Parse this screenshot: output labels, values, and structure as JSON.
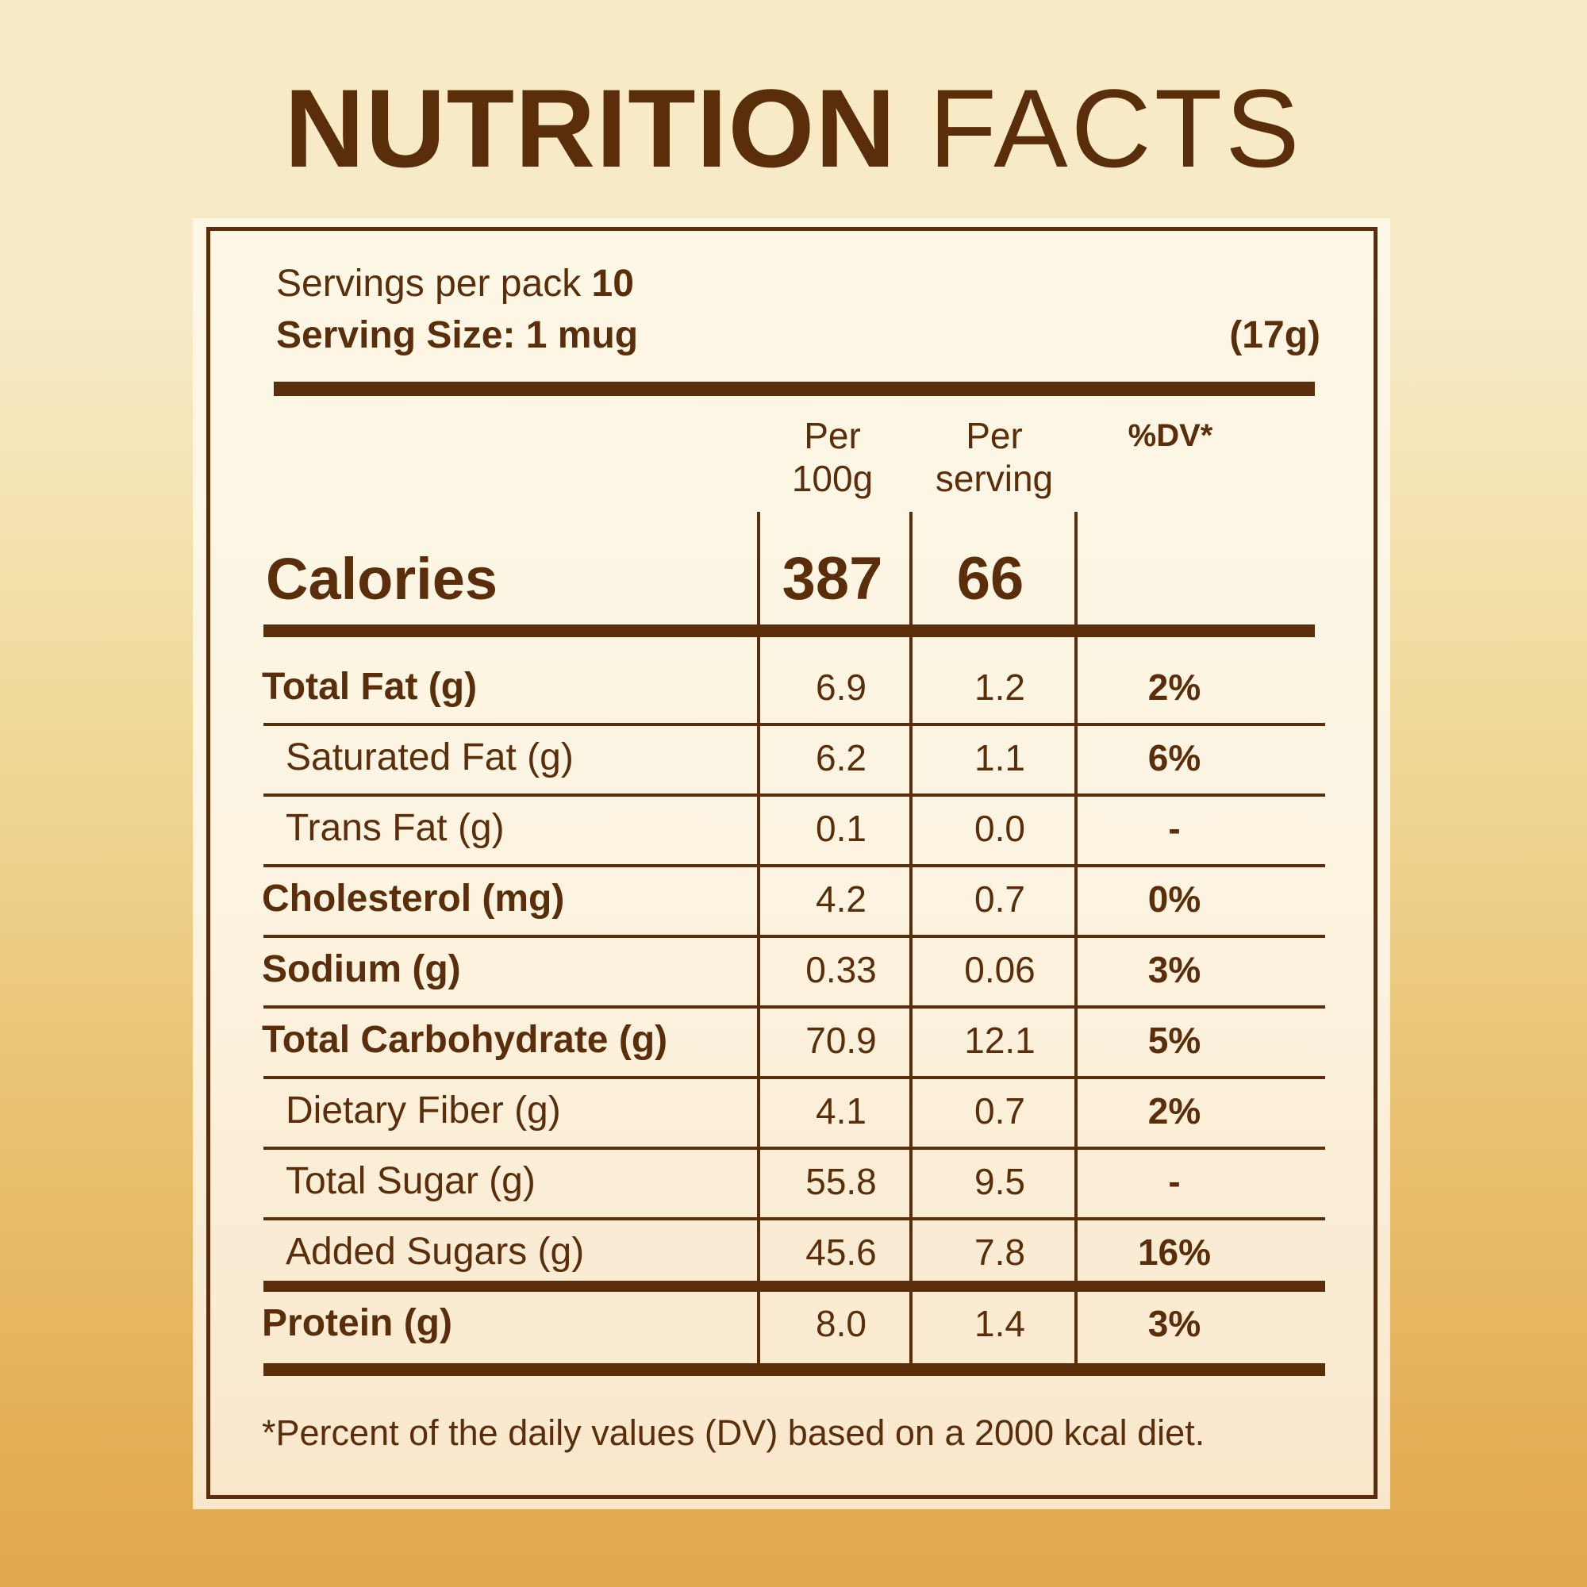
{
  "title": {
    "bold": "NUTRITION",
    "light": "FACTS"
  },
  "servings": {
    "label": "Servings per pack",
    "count": "10"
  },
  "serving_size": {
    "label": "Serving Size: 1 mug",
    "weight": "(17g)"
  },
  "columns": {
    "per100_line1": "Per",
    "per100_line2": "100g",
    "perserv_line1": "Per",
    "perserv_line2": "serving",
    "dv": "%DV*"
  },
  "calories": {
    "label": "Calories",
    "per100": "387",
    "per_serving": "66"
  },
  "rows": [
    {
      "label": "Total Fat (g)",
      "per100": "6.9",
      "per_serving": "1.2",
      "dv": "2%",
      "bold": true
    },
    {
      "label": "Saturated Fat (g)",
      "per100": "6.2",
      "per_serving": "1.1",
      "dv": "6%",
      "bold": false
    },
    {
      "label": "Trans Fat (g)",
      "per100": "0.1",
      "per_serving": "0.0",
      "dv": "-",
      "bold": false
    },
    {
      "label": "Cholesterol (mg)",
      "per100": "4.2",
      "per_serving": "0.7",
      "dv": "0%",
      "bold": true
    },
    {
      "label": "Sodium (g)",
      "per100": "0.33",
      "per_serving": "0.06",
      "dv": "3%",
      "bold": true
    },
    {
      "label": "Total Carbohydrate (g)",
      "per100": "70.9",
      "per_serving": "12.1",
      "dv": "5%",
      "bold": true
    },
    {
      "label": "Dietary Fiber (g)",
      "per100": "4.1",
      "per_serving": "0.7",
      "dv": "2%",
      "bold": false
    },
    {
      "label": "Total Sugar (g)",
      "per100": "55.8",
      "per_serving": "9.5",
      "dv": "-",
      "bold": false
    },
    {
      "label": "Added Sugars (g)",
      "per100": "45.6",
      "per_serving": "7.8",
      "dv": "16%",
      "bold": false
    },
    {
      "label": "Protein (g)",
      "per100": "8.0",
      "per_serving": "1.4",
      "dv": "3%",
      "bold": true
    }
  ],
  "footnote": "*Percent of the daily values (DV) based on a 2000 kcal diet."
}
